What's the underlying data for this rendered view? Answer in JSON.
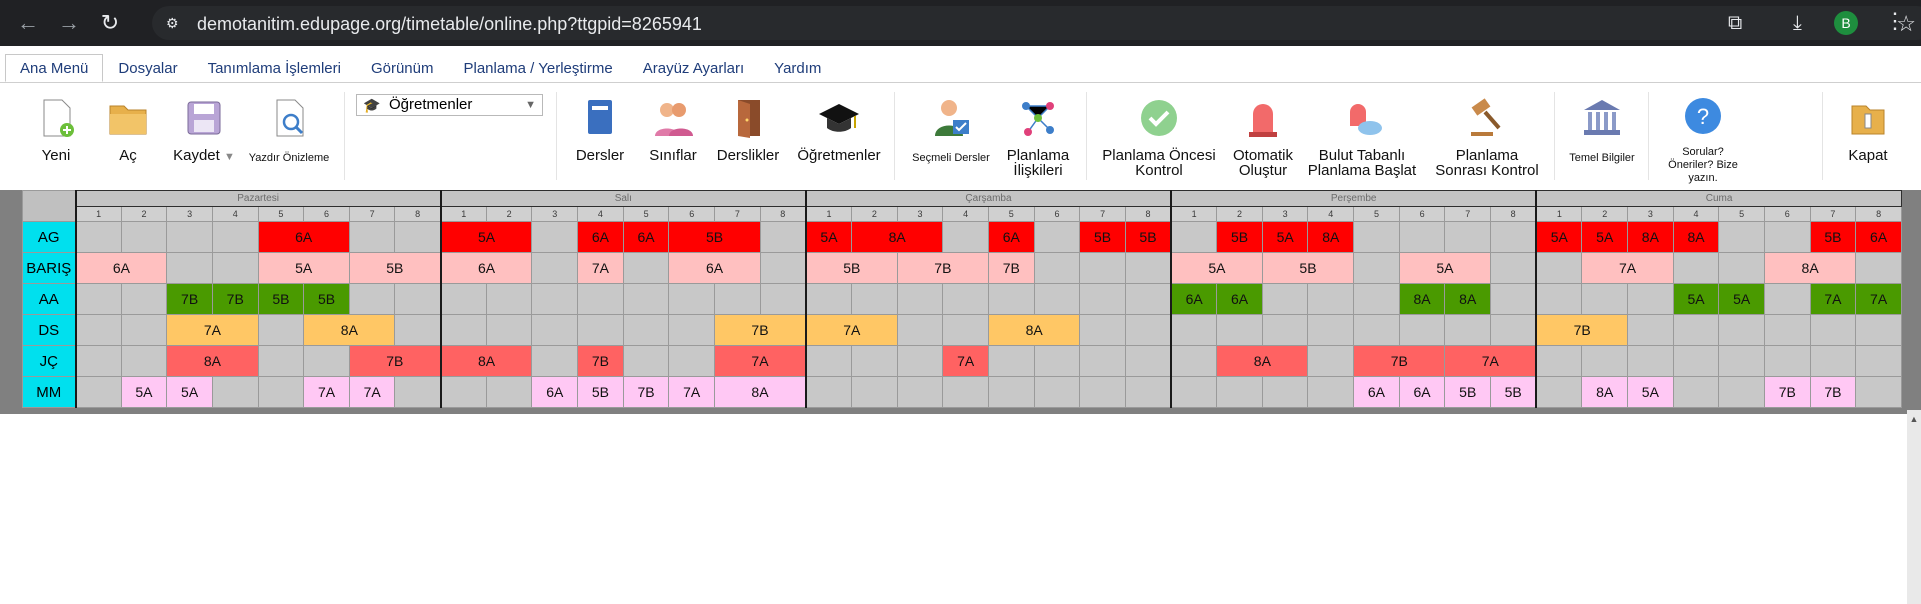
{
  "browser": {
    "url": "demotanitim.edupage.org/timetable/online.php?ttgpid=8265941",
    "profile_initial": "B"
  },
  "menu": {
    "tabs": [
      "Ana Menü",
      "Dosyalar",
      "Tanımlama İşlemleri",
      "Görünüm",
      "Planlama / Yerleştirme",
      "Arayüz Ayarları",
      "Yardım"
    ]
  },
  "ribbon": {
    "yeni": "Yeni",
    "ac": "Aç",
    "kaydet": "Kaydet",
    "yazdir": "Yazdır Önizleme",
    "dropdown_value": "Öğretmenler",
    "dersler": "Dersler",
    "siniflar": "Sınıflar",
    "derslikler": "Derslikler",
    "ogretmenler": "Öğretmenler",
    "secmeli": "Seçmeli Dersler",
    "planlama_iliskileri": "Planlama İlişkileri",
    "planlama_oncesi": "Planlama Öncesi Kontrol",
    "otomatik": "Otomatik Oluştur",
    "bulut": "Bulut Tabanlı Planlama Başlat",
    "sonrasi": "Planlama Sonrası Kontrol",
    "temel": "Temel Bilgiler",
    "sorular": "Sorular? Öneriler? Bize yazın.",
    "kapat": "Kapat"
  },
  "colors": {
    "red": "#ff0000",
    "pink": "#ffc0c0",
    "green": "#4a9a00",
    "orange": "#ffc765",
    "salmon": "#ff6262",
    "lilac": "#ffc8f4",
    "teacher": "#00e0ee"
  },
  "timetable": {
    "days": [
      "Pazartesi",
      "Salı",
      "Çarşamba",
      "Perşembe",
      "Cuma"
    ],
    "periods": [
      "1",
      "2",
      "3",
      "4",
      "5",
      "6",
      "7",
      "8"
    ],
    "rows": [
      {
        "teacher": "AG",
        "color": "red",
        "blocks": [
          [
            4,
            2,
            "6A"
          ],
          [
            8,
            2,
            "5A"
          ],
          [
            11,
            1,
            "6A"
          ],
          [
            12,
            1,
            "6A"
          ],
          [
            13,
            2,
            "5B"
          ],
          [
            16,
            1,
            "5A"
          ],
          [
            17,
            2,
            "8A"
          ],
          [
            20,
            1,
            "6A"
          ],
          [
            22,
            1,
            "5B"
          ],
          [
            23,
            1,
            "5B"
          ],
          [
            25,
            1,
            "5B"
          ],
          [
            26,
            1,
            "5A"
          ],
          [
            27,
            1,
            "8A"
          ],
          [
            32,
            1,
            "5A"
          ],
          [
            33,
            1,
            "5A"
          ],
          [
            34,
            1,
            "8A"
          ],
          [
            35,
            1,
            "8A"
          ],
          [
            38,
            1,
            "5B"
          ],
          [
            39,
            1,
            "6A"
          ]
        ]
      },
      {
        "teacher": "BARIŞ",
        "color": "pink",
        "blocks": [
          [
            0,
            2,
            "6A"
          ],
          [
            4,
            2,
            "5A"
          ],
          [
            6,
            2,
            "5B"
          ],
          [
            8,
            2,
            "6A"
          ],
          [
            11,
            1,
            "7A"
          ],
          [
            13,
            2,
            "6A"
          ],
          [
            16,
            2,
            "5B"
          ],
          [
            18,
            2,
            "7B"
          ],
          [
            20,
            1,
            "7B"
          ],
          [
            24,
            2,
            "5A"
          ],
          [
            26,
            2,
            "5B"
          ],
          [
            29,
            2,
            "5A"
          ],
          [
            33,
            2,
            "7A"
          ],
          [
            37,
            2,
            "8A"
          ]
        ]
      },
      {
        "teacher": "AA",
        "color": "green",
        "blocks": [
          [
            2,
            1,
            "7B"
          ],
          [
            3,
            1,
            "7B"
          ],
          [
            4,
            1,
            "5B"
          ],
          [
            5,
            1,
            "5B"
          ],
          [
            24,
            1,
            "6A"
          ],
          [
            25,
            1,
            "6A"
          ],
          [
            29,
            1,
            "8A"
          ],
          [
            30,
            1,
            "8A"
          ],
          [
            35,
            1,
            "5A"
          ],
          [
            36,
            1,
            "5A"
          ],
          [
            38,
            1,
            "7A"
          ],
          [
            39,
            1,
            "7A"
          ]
        ]
      },
      {
        "teacher": "DS",
        "color": "orange",
        "blocks": [
          [
            2,
            2,
            "7A"
          ],
          [
            5,
            2,
            "8A"
          ],
          [
            14,
            2,
            "7B"
          ],
          [
            16,
            2,
            "7A"
          ],
          [
            20,
            2,
            "8A"
          ],
          [
            32,
            2,
            "7B"
          ]
        ]
      },
      {
        "teacher": "JÇ",
        "color": "salmon",
        "blocks": [
          [
            2,
            2,
            "8A"
          ],
          [
            6,
            2,
            "7B"
          ],
          [
            8,
            2,
            "8A"
          ],
          [
            11,
            1,
            "7B"
          ],
          [
            14,
            2,
            "7A"
          ],
          [
            19,
            1,
            "7A"
          ],
          [
            25,
            2,
            "8A"
          ],
          [
            28,
            2,
            "7B"
          ],
          [
            30,
            2,
            "7A"
          ]
        ]
      },
      {
        "teacher": "MM",
        "color": "lilac",
        "blocks": [
          [
            1,
            1,
            "5A"
          ],
          [
            2,
            1,
            "5A"
          ],
          [
            5,
            1,
            "7A"
          ],
          [
            6,
            1,
            "7A"
          ],
          [
            10,
            1,
            "6A"
          ],
          [
            11,
            1,
            "5B"
          ],
          [
            12,
            1,
            "7B"
          ],
          [
            13,
            1,
            "7A"
          ],
          [
            14,
            2,
            "8A"
          ],
          [
            28,
            1,
            "6A"
          ],
          [
            29,
            1,
            "6A"
          ],
          [
            30,
            1,
            "5B"
          ],
          [
            31,
            1,
            "5B"
          ],
          [
            33,
            1,
            "8A"
          ],
          [
            34,
            1,
            "5A"
          ],
          [
            37,
            1,
            "7B"
          ],
          [
            38,
            1,
            "7B"
          ]
        ]
      }
    ]
  }
}
